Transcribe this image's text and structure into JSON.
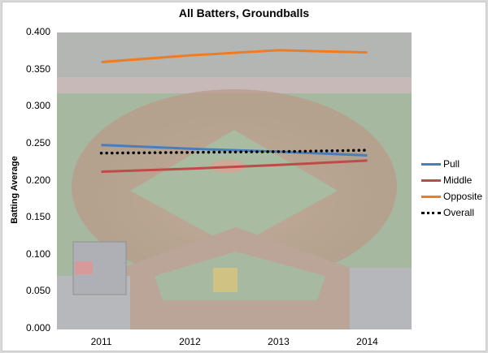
{
  "chart_data": {
    "type": "line",
    "title": "All Batters, Groundballs",
    "xlabel": "",
    "ylabel": "Batting Average",
    "categories": [
      "2011",
      "2012",
      "2013",
      "2014"
    ],
    "ylim": [
      0.0,
      0.4
    ],
    "yticks": [
      "0.000",
      "0.050",
      "0.100",
      "0.150",
      "0.200",
      "0.250",
      "0.300",
      "0.350",
      "0.400"
    ],
    "grid": false,
    "legend_position": "right",
    "background": "faded baseball stadium photo behind plot area",
    "series": [
      {
        "name": "Pull",
        "color": "#4a7ebb",
        "style": "solid",
        "values": [
          0.248,
          0.243,
          0.239,
          0.234
        ]
      },
      {
        "name": "Middle",
        "color": "#be4b48",
        "style": "solid",
        "values": [
          0.212,
          0.216,
          0.221,
          0.227
        ]
      },
      {
        "name": "Opposite",
        "color": "#f07c22",
        "style": "solid",
        "values": [
          0.36,
          0.369,
          0.376,
          0.373
        ]
      },
      {
        "name": "Overall",
        "color": "#000000",
        "style": "dotted",
        "values": [
          0.237,
          0.238,
          0.239,
          0.241
        ]
      }
    ]
  },
  "labels": {
    "title": "All Batters, Groundballs",
    "ylabel": "Batting Average",
    "legend": [
      "Pull",
      "Middle",
      "Opposite",
      "Overall"
    ]
  }
}
